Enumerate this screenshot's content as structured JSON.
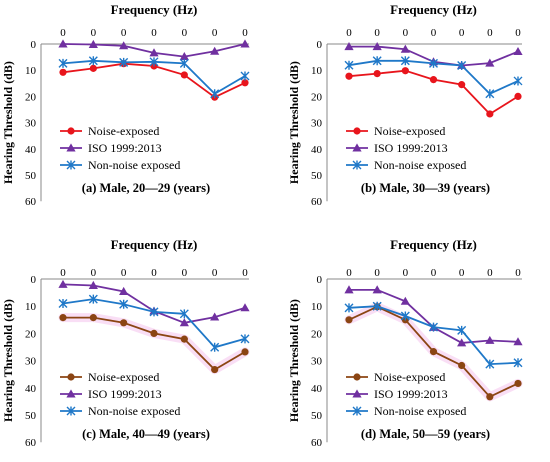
{
  "colors": {
    "noise_exposed": "#E8151C",
    "iso": "#7030A0",
    "non_noise": "#1F78C8",
    "noise_exposed_lower": "#8B4513",
    "lower_band_highlight": "#F7D6F2"
  },
  "chart_data": [
    {
      "type": "line",
      "title": "(a) Male, 20—29 (years)",
      "xlabel": "Frequency (Hz)",
      "ylabel": "Hearing Threshold (dB)",
      "categories": [
        "0",
        "0",
        "0",
        "0",
        "0",
        "0",
        "0"
      ],
      "ylim": [
        0,
        60
      ],
      "yticks": [
        "0",
        "10",
        "20",
        "30",
        "40",
        "50",
        "60"
      ],
      "y_inverted": true,
      "legend_position": "middle-left",
      "series": [
        {
          "name": "Noise-exposed",
          "marker": "circle",
          "color": "#E8151C",
          "values": [
            10.8,
            9.3,
            7.5,
            8.4,
            11.8,
            20.3,
            14.8
          ]
        },
        {
          "name": "ISO 1999:2013",
          "marker": "triangle",
          "color": "#7030A0",
          "values": [
            0,
            0.2,
            0.7,
            3.4,
            4.8,
            2.8,
            0
          ]
        },
        {
          "name": "Non-noise exposed",
          "marker": "star",
          "color": "#1F78C8",
          "values": [
            7.4,
            6.4,
            7.0,
            6.8,
            7.4,
            19.0,
            12.2
          ]
        }
      ]
    },
    {
      "type": "line",
      "title": "(b) Male, 30—39 (years)",
      "xlabel": "Frequency (Hz)",
      "ylabel": "Hearing Threshold (dB)",
      "categories": [
        "0",
        "0",
        "0",
        "0",
        "0",
        "0",
        "0"
      ],
      "ylim": [
        0,
        60
      ],
      "yticks": [
        "0",
        "10",
        "20",
        "30",
        "40",
        "50",
        "60"
      ],
      "y_inverted": true,
      "legend_position": "middle-left",
      "series": [
        {
          "name": "Noise-exposed",
          "marker": "circle",
          "color": "#E8151C",
          "values": [
            12.3,
            11.3,
            10.2,
            13.6,
            15.5,
            26.7,
            20.0
          ]
        },
        {
          "name": "ISO 1999:2013",
          "marker": "triangle",
          "color": "#7030A0",
          "values": [
            1.0,
            1.0,
            2.0,
            6.8,
            8.2,
            7.3,
            2.9
          ]
        },
        {
          "name": "Non-noise exposed",
          "marker": "star",
          "color": "#1F78C8",
          "values": [
            8.1,
            6.4,
            6.4,
            7.4,
            8.2,
            19.0,
            14.1
          ]
        }
      ]
    },
    {
      "type": "line",
      "title": "(c) Male, 40—49 (years)",
      "xlabel": "Frequency (Hz)",
      "ylabel": "Hearing Threshold (dB)",
      "categories": [
        "0",
        "0",
        "0",
        "0",
        "0",
        "0",
        "0"
      ],
      "ylim": [
        0,
        60
      ],
      "yticks": [
        "0",
        "10",
        "20",
        "30",
        "40",
        "50",
        "60"
      ],
      "y_inverted": true,
      "legend_position": "middle-left",
      "series": [
        {
          "name": "Noise-exposed",
          "marker": "circle",
          "color": "#8B4513",
          "values": [
            14.2,
            14.2,
            16.1,
            20.0,
            22.1,
            33.3,
            26.8
          ]
        },
        {
          "name": "ISO 1999:2013",
          "marker": "triangle",
          "color": "#7030A0",
          "values": [
            2.0,
            2.4,
            4.6,
            11.8,
            16.1,
            14.0,
            10.6
          ]
        },
        {
          "name": "Non-noise exposed",
          "marker": "star",
          "color": "#1F78C8",
          "values": [
            9.0,
            7.4,
            9.3,
            12.1,
            12.8,
            25.1,
            22.0
          ]
        }
      ]
    },
    {
      "type": "line",
      "title": "(d) Male, 50—59 (years)",
      "xlabel": "Frequency (Hz)",
      "ylabel": "Hearing Threshold (dB)",
      "categories": [
        "0",
        "0",
        "0",
        "0",
        "0",
        "0",
        "0"
      ],
      "ylim": [
        0,
        60
      ],
      "yticks": [
        "0",
        "10",
        "20",
        "30",
        "40",
        "50",
        "60"
      ],
      "y_inverted": true,
      "legend_position": "middle-left",
      "series": [
        {
          "name": "Noise-exposed",
          "marker": "circle",
          "color": "#8B4513",
          "values": [
            15.0,
            10.2,
            15.0,
            26.7,
            31.8,
            43.3,
            38.4
          ]
        },
        {
          "name": "ISO 1999:2013",
          "marker": "triangle",
          "color": "#7030A0",
          "values": [
            4.0,
            4.0,
            8.2,
            17.8,
            23.5,
            22.6,
            23.1
          ]
        },
        {
          "name": "Non-noise exposed",
          "marker": "star",
          "color": "#1F78C8",
          "values": [
            10.6,
            10.0,
            13.6,
            17.7,
            18.9,
            31.3,
            30.8
          ]
        }
      ]
    }
  ]
}
